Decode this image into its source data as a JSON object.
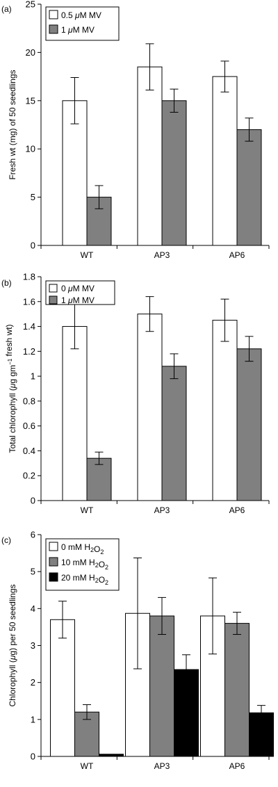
{
  "colors": {
    "white_bar": "#ffffff",
    "gray_bar": "#808080",
    "black_bar": "#000000"
  },
  "chart_data": [
    {
      "panel_label": "(a)",
      "type": "bar",
      "categories": [
        "WT",
        "AP3",
        "AP6"
      ],
      "ylabel": "Fresh wt (mg)  of  50 seedlings",
      "ylim": [
        0,
        25
      ],
      "yticks": [
        0,
        5,
        10,
        15,
        20,
        25
      ],
      "legend_placement": "top-left",
      "series": [
        {
          "name": "0.5 μM MV",
          "color": "#ffffff",
          "values": [
            15,
            18.5,
            17.5
          ],
          "errors": [
            2.4,
            2.4,
            1.6
          ]
        },
        {
          "name": "1 μM MV",
          "color": "#808080",
          "values": [
            5,
            15,
            12
          ],
          "errors": [
            1.2,
            1.2,
            1.2
          ]
        }
      ]
    },
    {
      "panel_label": "(b)",
      "type": "bar",
      "categories": [
        "WT",
        "AP3",
        "AP6"
      ],
      "ylabel": "Total chlorophyll (μg gm⁻¹ fresh wt)",
      "ylim": [
        0,
        1.8
      ],
      "yticks": [
        0,
        0.2,
        0.4,
        0.6,
        0.8,
        1,
        1.2,
        1.4,
        1.6,
        1.8
      ],
      "legend_placement": "top-left",
      "series": [
        {
          "name": "0 μM MV",
          "color": "#ffffff",
          "values": [
            1.4,
            1.5,
            1.45
          ],
          "errors": [
            0.18,
            0.14,
            0.17
          ]
        },
        {
          "name": "1 μM MV",
          "color": "#808080",
          "values": [
            0.34,
            1.08,
            1.22
          ],
          "errors": [
            0.05,
            0.1,
            0.1
          ]
        }
      ]
    },
    {
      "panel_label": "(c)",
      "type": "bar",
      "categories": [
        "WT",
        "AP3",
        "AP6"
      ],
      "ylabel": "Chlorophyll (μg) per 50 seedlings",
      "ylim": [
        0,
        6
      ],
      "yticks": [
        0,
        1,
        2,
        3,
        4,
        5,
        6
      ],
      "legend_placement": "top-left",
      "series": [
        {
          "name": "0 mM H₂O₂",
          "color": "#ffffff",
          "values": [
            3.7,
            3.87,
            3.8
          ],
          "errors": [
            0.5,
            1.5,
            1.03
          ]
        },
        {
          "name": "10 mM H₂O₂",
          "color": "#808080",
          "values": [
            1.2,
            3.8,
            3.6
          ],
          "errors": [
            0.2,
            0.5,
            0.3
          ]
        },
        {
          "name": "20 mM H₂O₂",
          "color": "#000000",
          "values": [
            0.06,
            2.35,
            1.18
          ],
          "errors": [
            0,
            0.4,
            0.2
          ]
        }
      ]
    }
  ]
}
